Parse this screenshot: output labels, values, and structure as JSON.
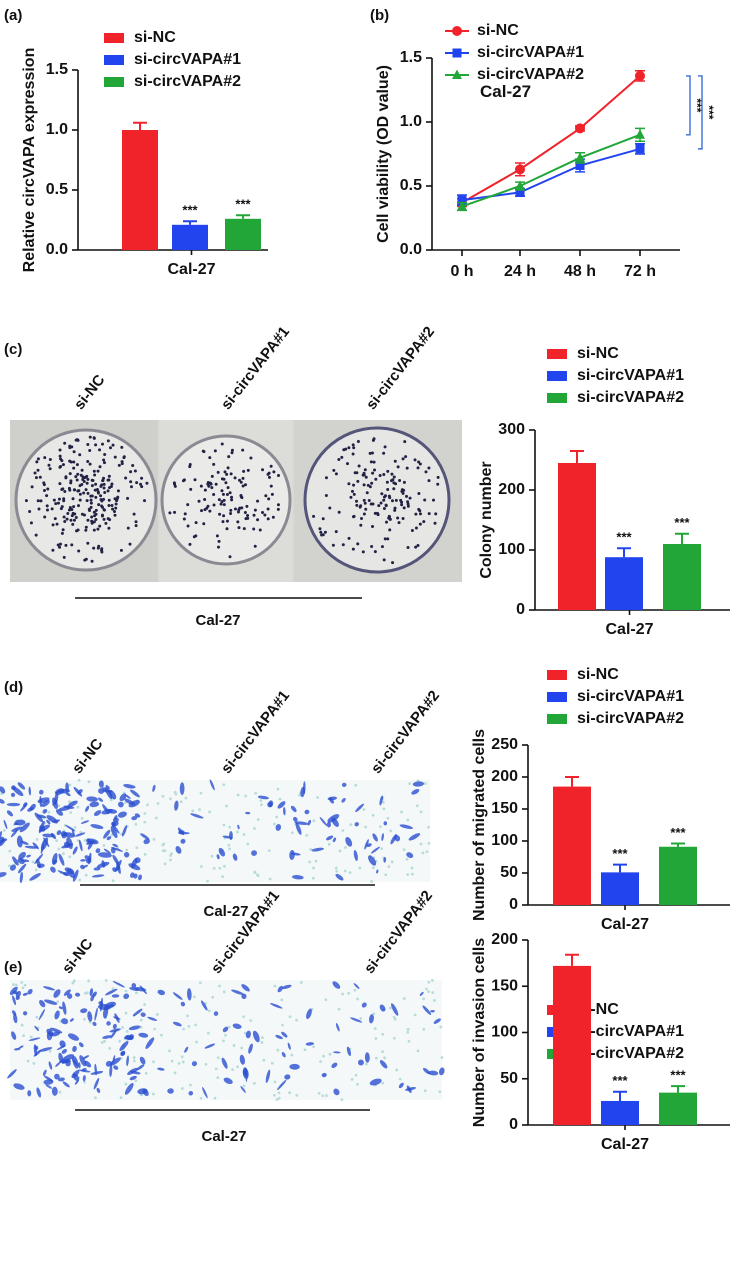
{
  "panel_labels": [
    "(a)",
    "(b)",
    "(c)",
    "(d)",
    "(e)"
  ],
  "photos": [
    {
      "labels": [
        "si-NC",
        "si-circVAPA#1",
        "si-circVAPA#2"
      ],
      "caption": "Cal-27"
    },
    {
      "labels": [
        "si-NC",
        "si-circVAPA#1",
        "si-circVAPA#2"
      ],
      "caption": "Cal-27"
    },
    {
      "labels": [
        "si-NC",
        "si-circVAPA#1",
        "si-circVAPA#2"
      ],
      "caption": "Cal-27"
    }
  ],
  "chart_data": [
    {
      "type": "bar",
      "ylabel": "Relative circVAPA expression",
      "categories": [
        "Cal-27"
      ],
      "ylim": [
        0,
        1.5
      ],
      "yticks": [
        {
          "value": 0,
          "label": "0.0"
        },
        0.5,
        {
          "value": 1,
          "label": "1.0"
        },
        1.5
      ],
      "series": [
        {
          "name": "si-NC",
          "color": "#f0232b",
          "values": [
            1.0
          ],
          "errors": [
            0.06
          ]
        },
        {
          "name": "si-circVAPA#1",
          "color": "#2244ee",
          "values": [
            0.21
          ],
          "errors": [
            0.03
          ],
          "annotations": [
            "***"
          ]
        },
        {
          "name": "si-circVAPA#2",
          "color": "#22a637",
          "values": [
            0.26
          ],
          "errors": [
            0.03
          ],
          "annotations": [
            "***"
          ]
        }
      ]
    },
    {
      "type": "line",
      "ylabel": "Cell viability (OD value)",
      "categories": [
        "0 h",
        "24 h",
        "48 h",
        "72 h"
      ],
      "ylim": [
        0,
        1.5
      ],
      "yticks": [
        {
          "value": 0,
          "label": "0.0"
        },
        0.5,
        {
          "value": 1,
          "label": "1.0"
        },
        1.5
      ],
      "annotation": "Cal-27",
      "significance": [
        "***",
        "***"
      ],
      "series": [
        {
          "name": "si-NC",
          "color": "#f0232b",
          "marker": "circle",
          "values": [
            0.37,
            0.63,
            0.95,
            1.36
          ],
          "errors": [
            0.03,
            0.05,
            0.02,
            0.04
          ]
        },
        {
          "name": "si-circVAPA#1",
          "color": "#2244ee",
          "marker": "square",
          "values": [
            0.39,
            0.45,
            0.66,
            0.79
          ],
          "errors": [
            0.04,
            0.03,
            0.05,
            0.04
          ]
        },
        {
          "name": "si-circVAPA#2",
          "color": "#22a637",
          "marker": "triangle",
          "values": [
            0.34,
            0.5,
            0.72,
            0.9
          ],
          "errors": [
            0.03,
            0.03,
            0.04,
            0.05
          ]
        }
      ]
    },
    {
      "type": "bar",
      "ylabel": "Colony number",
      "categories": [
        "Cal-27"
      ],
      "ylim": [
        0,
        300
      ],
      "yticks": [
        0,
        100,
        200,
        300
      ],
      "series": [
        {
          "name": "si-NC",
          "color": "#f0232b",
          "values": [
            245
          ],
          "errors": [
            20
          ]
        },
        {
          "name": "si-circVAPA#1",
          "color": "#2244ee",
          "values": [
            88
          ],
          "errors": [
            15
          ],
          "annotations": [
            "***"
          ]
        },
        {
          "name": "si-circVAPA#2",
          "color": "#22a637",
          "values": [
            110
          ],
          "errors": [
            17
          ],
          "annotations": [
            "***"
          ]
        }
      ]
    },
    {
      "type": "bar",
      "ylabel": "Number of migrated cells",
      "categories": [
        "Cal-27"
      ],
      "ylim": [
        0,
        250
      ],
      "yticks": [
        0,
        50,
        100,
        150,
        200,
        250
      ],
      "series": [
        {
          "name": "si-NC",
          "color": "#f0232b",
          "values": [
            185
          ],
          "errors": [
            15
          ]
        },
        {
          "name": "si-circVAPA#1",
          "color": "#2244ee",
          "values": [
            51
          ],
          "errors": [
            12
          ],
          "annotations": [
            "***"
          ]
        },
        {
          "name": "si-circVAPA#2",
          "color": "#22a637",
          "values": [
            91
          ],
          "errors": [
            5
          ],
          "annotations": [
            "***"
          ]
        }
      ]
    },
    {
      "type": "bar",
      "ylabel": "Number of invasion cells",
      "categories": [
        "Cal-27"
      ],
      "ylim": [
        0,
        200
      ],
      "yticks": [
        0,
        50,
        100,
        150,
        200
      ],
      "series": [
        {
          "name": "si-NC",
          "color": "#f0232b",
          "values": [
            172
          ],
          "errors": [
            12
          ]
        },
        {
          "name": "si-circVAPA#1",
          "color": "#2244ee",
          "values": [
            26
          ],
          "errors": [
            10
          ],
          "annotations": [
            "***"
          ]
        },
        {
          "name": "si-circVAPA#2",
          "color": "#22a637",
          "values": [
            35
          ],
          "errors": [
            7
          ],
          "annotations": [
            "***"
          ]
        }
      ]
    }
  ]
}
